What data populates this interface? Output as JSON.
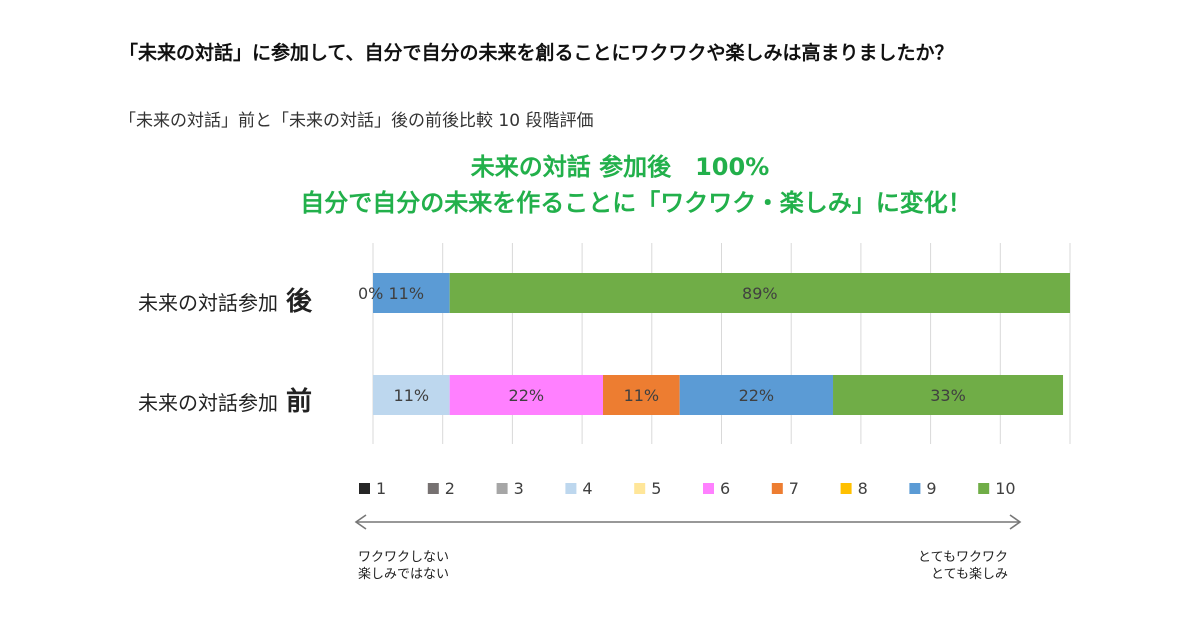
{
  "title": "「未来の対話」に参加して、自分で自分の未来を創ることにワクワクや楽しみは高まりましたか？",
  "subtitle": "「未来の対話」前と「未来の対話」後の前後比較 10 段階評価",
  "headline": {
    "line1": "未来の対話 参加後　100%",
    "line2": "自分で自分の未来を作ることに「ワクワク・楽しみ」に変化！"
  },
  "scale_ends": {
    "left_line1": "ワクワクしない",
    "left_line2": "楽しみではない",
    "right_line1": "とてもワクワク",
    "right_line2": "とても楽しみ"
  },
  "chart_data": {
    "type": "bar",
    "orientation": "horizontal",
    "stacked": true,
    "percent": true,
    "grid": true,
    "legend_position": "bottom",
    "categories": [
      {
        "label": "未来の対話参加",
        "emph": "後"
      },
      {
        "label": "未来の対話参加",
        "emph": "前"
      }
    ],
    "series": [
      {
        "name": "1",
        "color": "#262626",
        "values": [
          0,
          0
        ],
        "labels": [
          "",
          ""
        ]
      },
      {
        "name": "2",
        "color": "#767171",
        "values": [
          0,
          0
        ],
        "labels": [
          "",
          ""
        ]
      },
      {
        "name": "3",
        "color": "#a6a6a6",
        "values": [
          0,
          0
        ],
        "labels": [
          "",
          ""
        ]
      },
      {
        "name": "4",
        "color": "#bdd7ee",
        "values": [
          0,
          11
        ],
        "labels": [
          "",
          "11%"
        ]
      },
      {
        "name": "5",
        "color": "#ffe699",
        "values": [
          0,
          0
        ],
        "labels": [
          "",
          ""
        ]
      },
      {
        "name": "6",
        "color": "#ff80ff",
        "values": [
          0,
          22
        ],
        "labels": [
          "",
          "22%"
        ]
      },
      {
        "name": "7",
        "color": "#ed7d31",
        "values": [
          0,
          11
        ],
        "labels": [
          "",
          "11%"
        ]
      },
      {
        "name": "8",
        "color": "#ffc000",
        "values": [
          0,
          0
        ],
        "labels": [
          "",
          ""
        ]
      },
      {
        "name": "9",
        "color": "#5b9bd5",
        "values": [
          11,
          22
        ],
        "labels": [
          "0% 11%",
          "22%"
        ]
      },
      {
        "name": "10",
        "color": "#70ad47",
        "values": [
          89,
          33
        ],
        "labels": [
          "89%",
          "33%"
        ]
      }
    ]
  }
}
